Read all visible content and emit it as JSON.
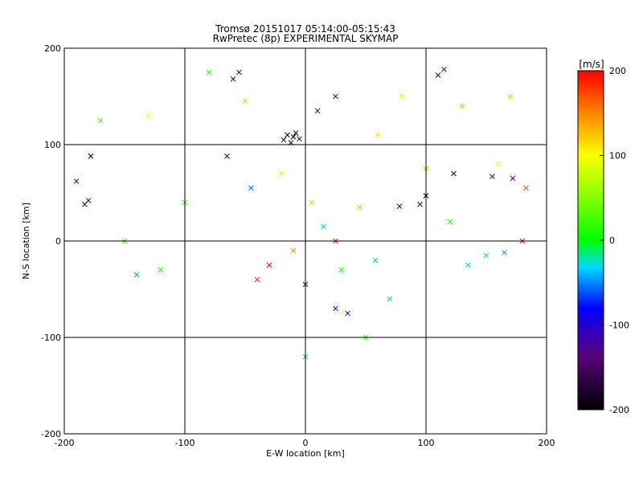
{
  "chart_data": {
    "type": "scatter",
    "title": "Tromsø 20151017 05:14:00-05:15:43",
    "subtitle": "RwPretec (8p) EXPERIMENTAL SKYMAP",
    "xlabel": "E-W location [km]",
    "ylabel": "N-S location [km]",
    "xlim": [
      -200,
      200
    ],
    "ylim": [
      -200,
      200
    ],
    "xticks": [
      -200,
      -100,
      0,
      100,
      200
    ],
    "yticks": [
      -200,
      -100,
      0,
      100,
      200
    ],
    "grid": true,
    "colorbar": {
      "label": "[m/s]",
      "range": [
        -200,
        200
      ],
      "ticks": [
        200,
        100,
        0,
        -100,
        -200
      ],
      "colormap": "rainbow (black-purple-blue-cyan-green-yellow-red)",
      "placement": "right"
    },
    "markers": "x (size scaled)",
    "series": [
      {
        "points": [
          {
            "x": -15,
            "y": 110,
            "v": -190
          },
          {
            "x": -10,
            "y": 108,
            "v": -200
          },
          {
            "x": -18,
            "y": 105,
            "v": -180
          },
          {
            "x": -8,
            "y": 112,
            "v": -195
          },
          {
            "x": -12,
            "y": 102,
            "v": -170
          },
          {
            "x": -5,
            "y": 106,
            "v": -185
          },
          {
            "x": -55,
            "y": 175,
            "v": -150
          },
          {
            "x": -60,
            "y": 168,
            "v": -160
          },
          {
            "x": 110,
            "y": 172,
            "v": -170
          },
          {
            "x": 115,
            "y": 178,
            "v": -150
          },
          {
            "x": 100,
            "y": 47,
            "v": -200
          },
          {
            "x": 95,
            "y": 38,
            "v": -180
          },
          {
            "x": 78,
            "y": 36,
            "v": -190
          },
          {
            "x": 123,
            "y": 70,
            "v": -190
          },
          {
            "x": -178,
            "y": 88,
            "v": -200
          },
          {
            "x": -180,
            "y": 42,
            "v": -160
          },
          {
            "x": -183,
            "y": 38,
            "v": -180
          },
          {
            "x": -65,
            "y": 88,
            "v": -190
          },
          {
            "x": 25,
            "y": 150,
            "v": -120
          },
          {
            "x": 10,
            "y": 135,
            "v": -110
          },
          {
            "x": -190,
            "y": 62,
            "v": -120
          },
          {
            "x": 155,
            "y": 67,
            "v": -130
          },
          {
            "x": 172,
            "y": 65,
            "v": -110
          },
          {
            "x": 35,
            "y": -75,
            "v": -120
          },
          {
            "x": 0,
            "y": -45,
            "v": -150
          },
          {
            "x": 25,
            "y": -70,
            "v": -80
          },
          {
            "x": -45,
            "y": 55,
            "v": -60
          },
          {
            "x": 150,
            "y": -15,
            "v": -40
          },
          {
            "x": 165,
            "y": -12,
            "v": -50
          },
          {
            "x": 135,
            "y": -25,
            "v": -40
          },
          {
            "x": -140,
            "y": -35,
            "v": -50
          },
          {
            "x": 58,
            "y": -20,
            "v": -40
          },
          {
            "x": 183,
            "y": 55,
            "v": 170
          },
          {
            "x": 180,
            "y": 0,
            "v": 200
          },
          {
            "x": 25,
            "y": 0,
            "v": 190
          },
          {
            "x": -30,
            "y": -25,
            "v": 200
          },
          {
            "x": -40,
            "y": -40,
            "v": 180
          },
          {
            "x": 45,
            "y": 35,
            "v": 130
          },
          {
            "x": 60,
            "y": 110,
            "v": 110
          },
          {
            "x": -130,
            "y": 130,
            "v": 105
          },
          {
            "x": 160,
            "y": 80,
            "v": 100
          },
          {
            "x": -50,
            "y": 145,
            "v": 60
          },
          {
            "x": 100,
            "y": 75,
            "v": 40
          },
          {
            "x": -170,
            "y": 125,
            "v": 30
          },
          {
            "x": 120,
            "y": 20,
            "v": 10
          },
          {
            "x": -100,
            "y": 40,
            "v": 20
          },
          {
            "x": 70,
            "y": -60,
            "v": -20
          },
          {
            "x": -120,
            "y": -30,
            "v": 5
          },
          {
            "x": 15,
            "y": 15,
            "v": -40
          },
          {
            "x": -10,
            "y": -10,
            "v": 150
          },
          {
            "x": 30,
            "y": -30,
            "v": 0
          },
          {
            "x": 5,
            "y": 40,
            "v": 60
          },
          {
            "x": -20,
            "y": 70,
            "v": 80
          },
          {
            "x": 80,
            "y": 150,
            "v": 90
          },
          {
            "x": 130,
            "y": 140,
            "v": 40
          },
          {
            "x": -80,
            "y": 175,
            "v": 20
          },
          {
            "x": 170,
            "y": 150,
            "v": 60
          },
          {
            "x": -150,
            "y": 0,
            "v": 30
          },
          {
            "x": 0,
            "y": -120,
            "v": -20
          },
          {
            "x": 50,
            "y": -100,
            "v": 10
          }
        ]
      }
    ]
  }
}
